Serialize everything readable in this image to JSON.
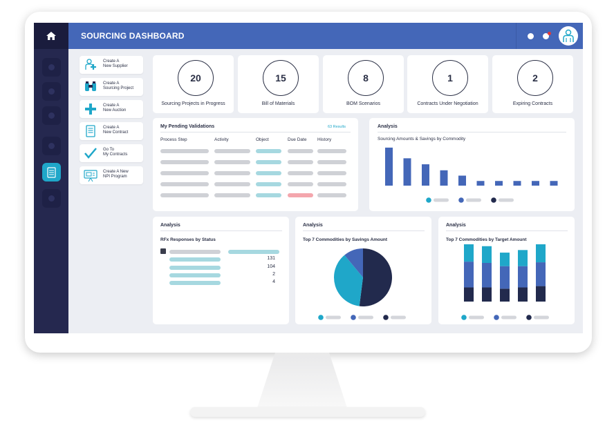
{
  "header": {
    "title": "SOURCING DASHBOARD"
  },
  "quick_actions": [
    {
      "label_line1": "Create A",
      "label_line2": "New Supplier",
      "icon": "add-user-icon"
    },
    {
      "label_line1": "Create A",
      "label_line2": "Sourcing Project",
      "icon": "binoculars-icon"
    },
    {
      "label_line1": "Create A",
      "label_line2": "New Auction",
      "icon": "plus-icon"
    },
    {
      "label_line1": "Create A",
      "label_line2": "New Contract",
      "icon": "document-icon"
    },
    {
      "label_line1": "Go To",
      "label_line2": "My Contracts",
      "icon": "checkmark-icon"
    },
    {
      "label_line1": "Create A New",
      "label_line2": "NPI Program",
      "icon": "presentation-icon"
    }
  ],
  "kpis": [
    {
      "value": "20",
      "label": "Sourcing Projects in Progress"
    },
    {
      "value": "15",
      "label": "Bill of Materials"
    },
    {
      "value": "8",
      "label": "BOM Scenarios"
    },
    {
      "value": "1",
      "label": "Contracts Under Negotiation"
    },
    {
      "value": "2",
      "label": "Expiring Contracts"
    }
  ],
  "validations": {
    "title": "My Pending Validations",
    "results": "63 Results",
    "columns": [
      "Process Step",
      "Activity",
      "Object",
      "Due Date",
      "History"
    ]
  },
  "analysis_top": {
    "title": "Analysis",
    "subtitle": "Sourcing Amounts & Savings by Commodity"
  },
  "rfx": {
    "title": "Analysis",
    "subtitle": "RFx Responses by Status",
    "values": [
      "131",
      "104",
      "2",
      "4"
    ]
  },
  "pie_card": {
    "title": "Analysis",
    "subtitle": "Top 7 Commodities by Savings Amount"
  },
  "stack_card": {
    "title": "Analysis",
    "subtitle": "Top 7 Commodities by Target Amount"
  },
  "colors": {
    "navy": "#25284f",
    "blue": "#4467b8",
    "teal": "#1fa7c9",
    "dark": "#222a4d"
  },
  "chart_data": [
    {
      "type": "bar",
      "values": [
        57,
        41,
        32,
        23,
        15,
        7,
        7,
        7,
        7,
        7
      ],
      "ylim": [
        0,
        60
      ],
      "legend_placement": "bottom",
      "series_colors": [
        "#1fa7c9",
        "#4467b8",
        "#222a4d"
      ]
    },
    {
      "type": "pie",
      "values": [
        52,
        37,
        11
      ],
      "colors": [
        "#222a4d",
        "#1fa7c9",
        "#4467b8"
      ],
      "legend_placement": "bottom"
    },
    {
      "type": "bar",
      "stacked": true,
      "series": [
        {
          "values": [
            22,
            22,
            20,
            22,
            24
          ]
        },
        {
          "values": [
            40,
            38,
            35,
            33,
            37
          ]
        },
        {
          "values": [
            28,
            26,
            21,
            25,
            28
          ]
        }
      ],
      "colors": [
        "#222a4d",
        "#4467b8",
        "#1fa7c9"
      ],
      "ylim": [
        0,
        90
      ],
      "legend_placement": "bottom"
    }
  ]
}
